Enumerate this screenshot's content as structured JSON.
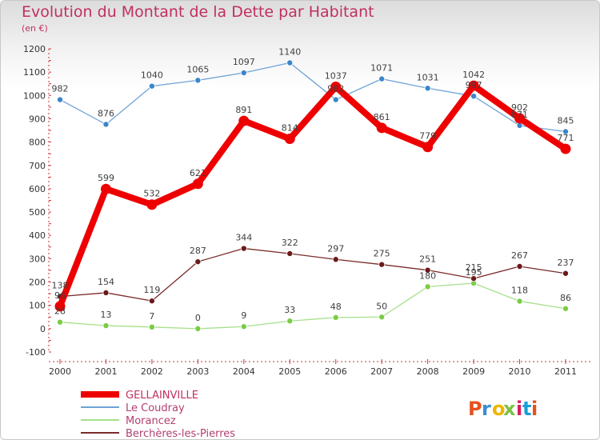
{
  "chart_data": {
    "type": "line",
    "title": "Evolution du Montant de la Dette par Habitant",
    "subtitle": "(en €)",
    "xlabel": "",
    "ylabel": "",
    "x": [
      "2000",
      "2001",
      "2002",
      "2003",
      "2004",
      "2005",
      "2006",
      "2007",
      "2008",
      "2009",
      "2010",
      "2011"
    ],
    "ylim": [
      -100,
      1200
    ],
    "yticks": [
      -100,
      0,
      100,
      200,
      300,
      400,
      500,
      600,
      700,
      800,
      900,
      1000,
      1100,
      1200
    ],
    "grid": false,
    "legend_position": "bottom-left",
    "series": [
      {
        "name": "GELLAINVILLE",
        "color": "#ee0000",
        "emphasis": true,
        "values": [
          96,
          599,
          532,
          621,
          891,
          814,
          1037,
          861,
          779,
          1042,
          902,
          771
        ],
        "labels": [
          "96",
          "599",
          "532",
          "621",
          "891",
          "814",
          "1037",
          "861",
          "779",
          "1042",
          "902",
          "771"
        ]
      },
      {
        "name": "Le Coudray",
        "color": "#6fa3d6",
        "marker_color": "#3a86c8",
        "values": [
          982,
          876,
          1040,
          1065,
          1097,
          1140,
          982,
          1071,
          1031,
          997,
          871,
          845
        ],
        "labels": [
          "982",
          "876",
          "1040",
          "1065",
          "1097",
          "1140",
          "982",
          "1071",
          "1031",
          "997",
          "871",
          "845"
        ]
      },
      {
        "name": "Morancez",
        "color": "#a6e08a",
        "marker_color": "#7acc44",
        "values": [
          28,
          13,
          7,
          0,
          9,
          33,
          48,
          50,
          180,
          195,
          118,
          86
        ],
        "labels": [
          "28",
          "13",
          "7",
          "0",
          "9",
          "33",
          "48",
          "50",
          "180",
          "195",
          "118",
          "86"
        ]
      },
      {
        "name": "Berchères-les-Pierres",
        "color": "#7a2a2a",
        "marker_color": "#6a1a1a",
        "values": [
          138,
          154,
          119,
          287,
          344,
          322,
          297,
          275,
          251,
          215,
          267,
          237
        ],
        "labels": [
          "138",
          "154",
          "119",
          "287",
          "344",
          "322",
          "297",
          "275",
          "251",
          "215",
          "267",
          "237"
        ]
      }
    ]
  },
  "branding": {
    "logo_text": "Proxiti",
    "logo_colors": [
      "#e8501e",
      "#3a8fd0",
      "#f0b400",
      "#7ac143",
      "#d81e5b",
      "#1a9fd8",
      "#e8501e"
    ]
  }
}
